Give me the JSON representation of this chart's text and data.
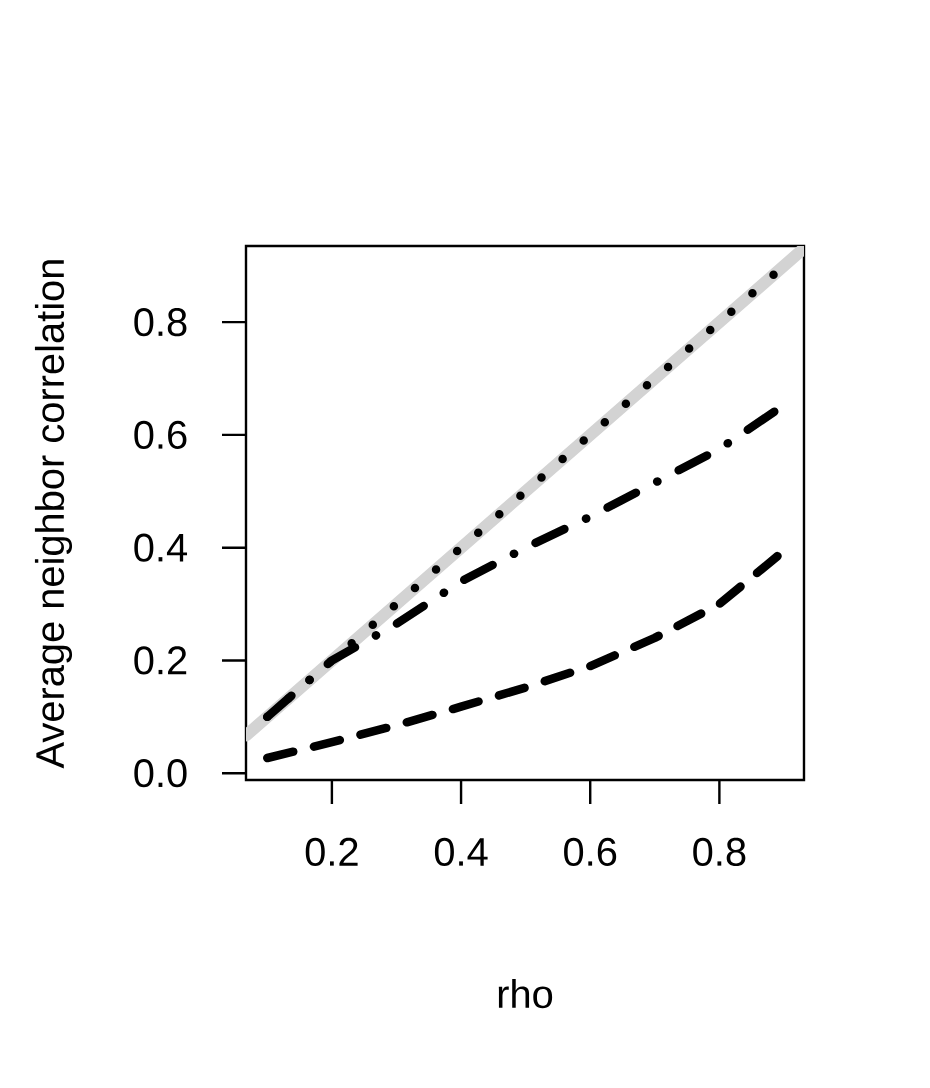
{
  "chart_data": {
    "type": "line",
    "xlabel": "rho",
    "ylabel": "Average neighbor correlation",
    "xlim": [
      0.067,
      0.931
    ],
    "ylim": [
      -0.012,
      0.935
    ],
    "xticks": [
      0.2,
      0.4,
      0.6,
      0.8
    ],
    "yticks": [
      {
        "value": 0,
        "label": "0.0"
      },
      0.2,
      0.4,
      0.6,
      0.8
    ],
    "grid": false,
    "series": [
      {
        "color": "#d3d3d3",
        "line_style": "solid",
        "x": [
          0.067,
          0.931
        ],
        "values": [
          0.067,
          0.931
        ]
      },
      {
        "color": "#000000",
        "line_style": "dotted",
        "x": [
          0.1,
          0.2,
          0.3,
          0.4,
          0.5,
          0.6,
          0.7,
          0.8,
          0.89
        ],
        "values": [
          0.1,
          0.2,
          0.3,
          0.4,
          0.5,
          0.6,
          0.7,
          0.8,
          0.89
        ]
      },
      {
        "color": "#000000",
        "line_style": "dashdot",
        "x": [
          0.1,
          0.2,
          0.3,
          0.4,
          0.5,
          0.6,
          0.7,
          0.8,
          0.89
        ],
        "values": [
          0.1,
          0.2,
          0.265,
          0.34,
          0.4,
          0.455,
          0.515,
          0.575,
          0.645
        ]
      },
      {
        "color": "#000000",
        "line_style": "dashed",
        "x": [
          0.1,
          0.2,
          0.3,
          0.4,
          0.5,
          0.6,
          0.7,
          0.8,
          0.89
        ],
        "values": [
          0.027,
          0.055,
          0.085,
          0.118,
          0.152,
          0.19,
          0.24,
          0.3,
          0.385
        ]
      }
    ]
  }
}
